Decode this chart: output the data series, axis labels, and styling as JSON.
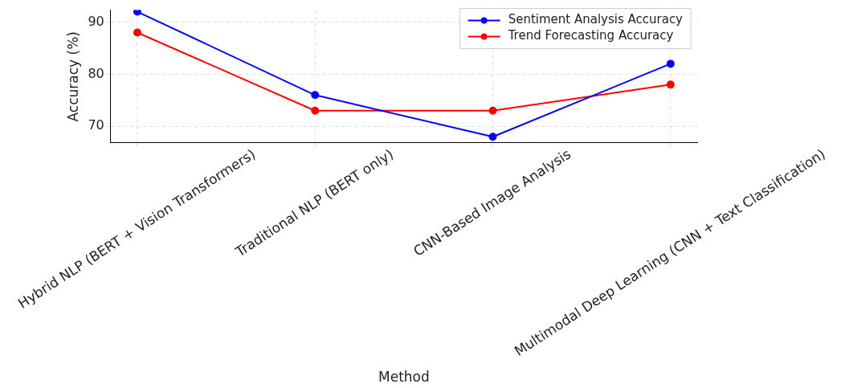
{
  "chart_data": {
    "type": "line",
    "xlabel": "Method",
    "ylabel": "Accuracy (%)",
    "categories": [
      "Hybrid NLP (BERT + Vision Transformers)",
      "Traditional NLP (BERT only)",
      "CNN-Based Image Analysis",
      "Multimodal Deep Learning (CNN + Text Classification)"
    ],
    "series": [
      {
        "name": "Sentiment Analysis Accuracy",
        "color": "#0000ff",
        "values": [
          92,
          76,
          68,
          82
        ]
      },
      {
        "name": "Trend Forecasting Accuracy",
        "color": "#ff0000",
        "values": [
          88,
          73,
          73,
          78
        ]
      }
    ],
    "ylim": [
      66.8,
      92.3
    ],
    "yticks": [
      70,
      80,
      90
    ],
    "grid": true,
    "legend": "top right",
    "marker": "circle",
    "line_style": "solid"
  }
}
